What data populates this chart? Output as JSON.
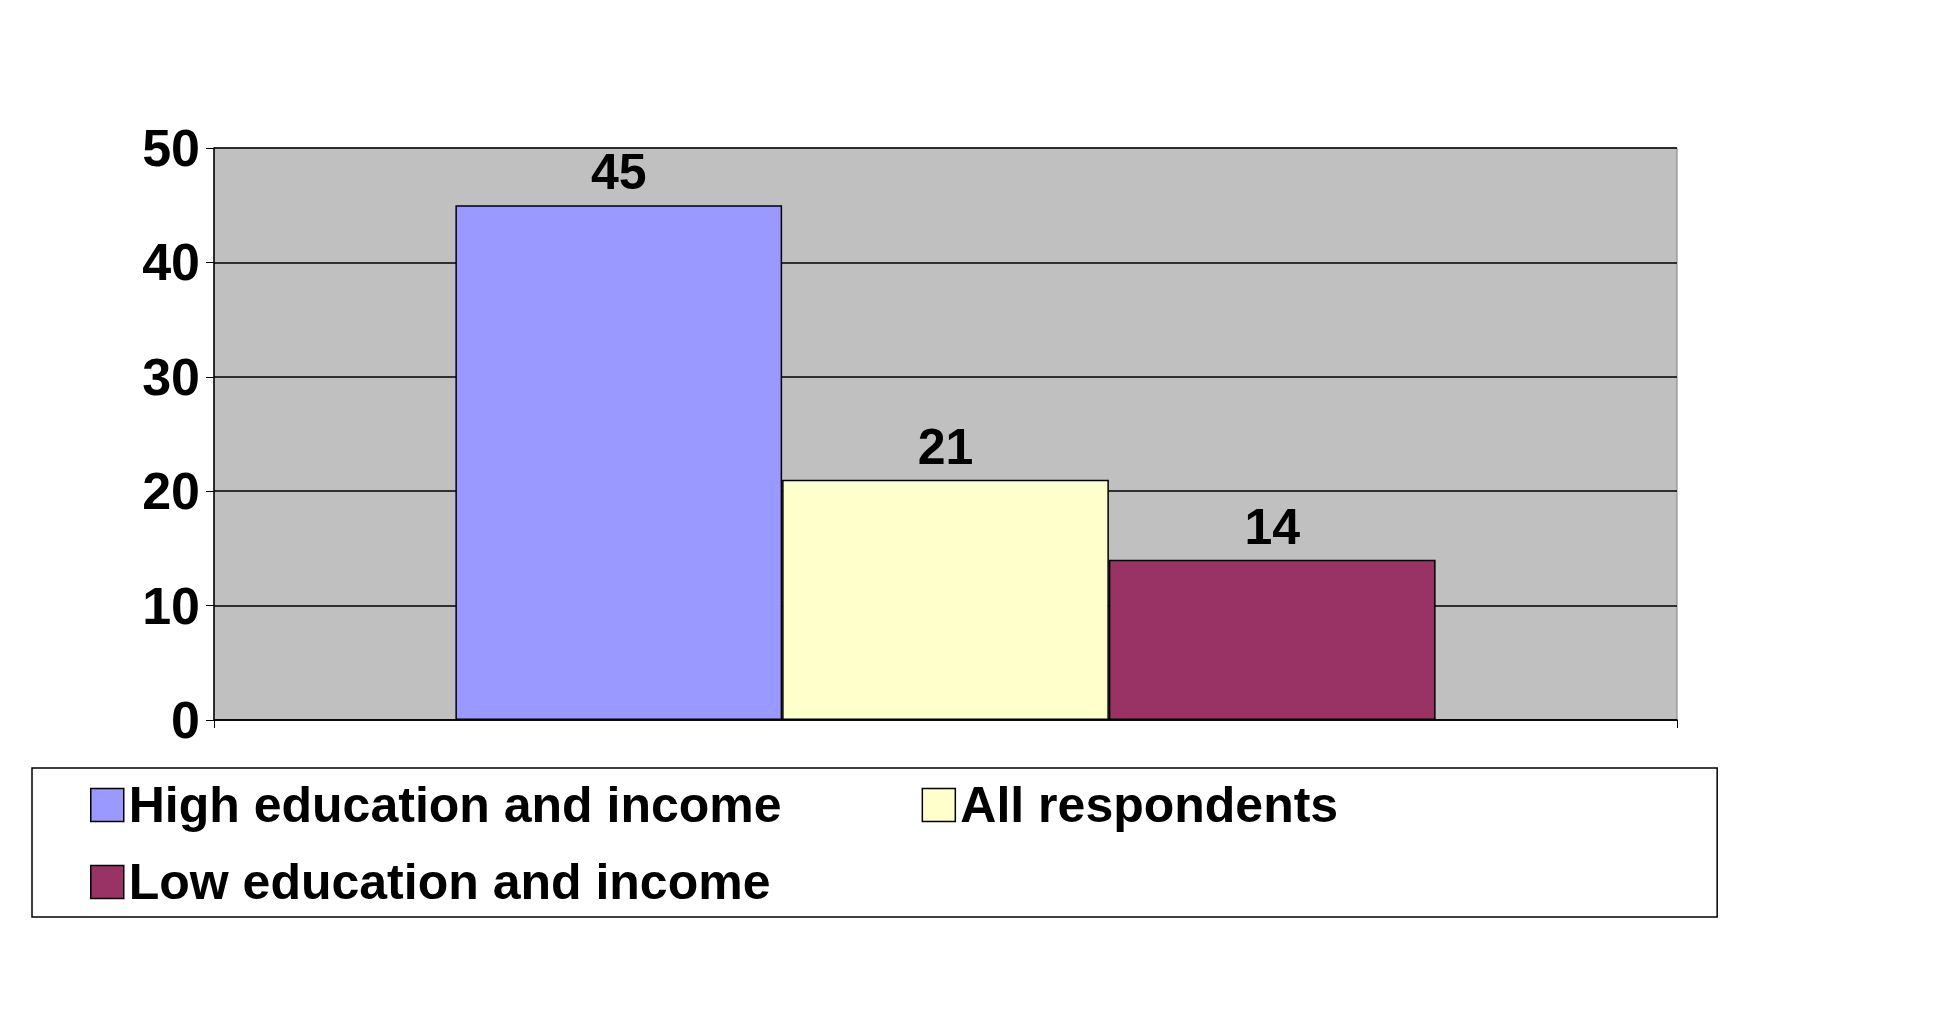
{
  "chart_data": {
    "type": "bar",
    "categories": [
      null
    ],
    "series": [
      {
        "name": "High education and income",
        "color": "#9999ff",
        "values": [
          45
        ]
      },
      {
        "name": "All respondents",
        "color": "#ffffcc",
        "values": [
          21
        ]
      },
      {
        "name": "Low education and income",
        "color": "#993366",
        "values": [
          14
        ]
      }
    ],
    "ylim": [
      0,
      50
    ],
    "yticks": [
      0,
      10,
      20,
      30,
      40,
      50
    ],
    "grid": "y",
    "legend": "bottom",
    "data_labels": true
  }
}
